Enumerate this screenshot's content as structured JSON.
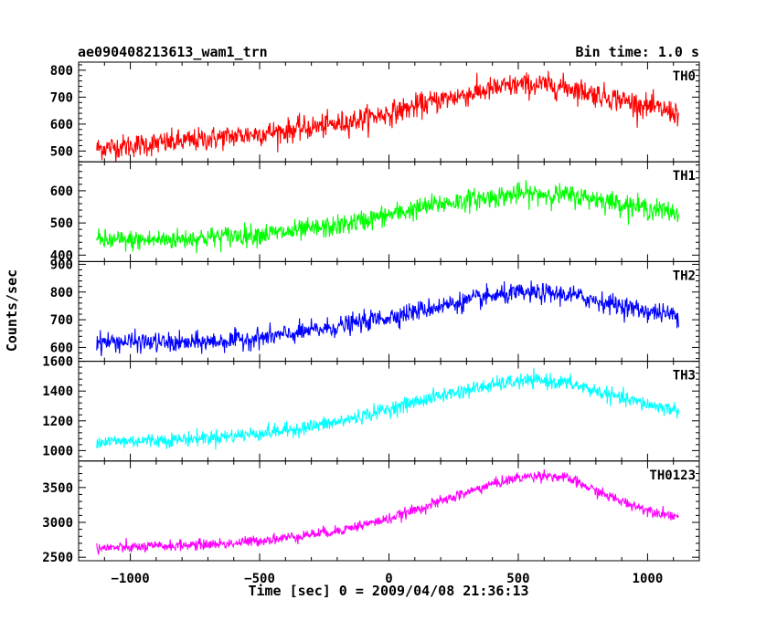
{
  "chart_data": {
    "type": "line",
    "title": "ae090408213613_wam1_trn",
    "bin_time": "Bin time: 1.0 s",
    "xlabel": "Time [sec] 0 = 2009/04/08 21:36:13",
    "ylabel": "Counts/sec",
    "xlim": [
      -1200,
      1200
    ],
    "x_ticks": [
      -1000,
      -500,
      0,
      500,
      1000
    ],
    "x_tick_labels": [
      "−1000",
      "−500",
      "0",
      "500",
      "1000"
    ],
    "grid": false,
    "panels": [
      {
        "name": "TH0",
        "color": "#ff0000",
        "ylim": [
          460,
          830
        ],
        "y_ticks": [
          500,
          600,
          700,
          800
        ],
        "profile": {
          "x": [
            -1130,
            -1000,
            -800,
            -600,
            -400,
            -200,
            0,
            200,
            400,
            500,
            600,
            700,
            800,
            900,
            1000,
            1120
          ],
          "y": [
            510,
            520,
            535,
            555,
            575,
            600,
            640,
            690,
            730,
            745,
            745,
            735,
            710,
            690,
            665,
            640
          ]
        },
        "noise": 40
      },
      {
        "name": "TH1",
        "color": "#00ff00",
        "ylim": [
          380,
          690
        ],
        "y_ticks": [
          400,
          500,
          600
        ],
        "profile": {
          "x": [
            -1130,
            -1000,
            -800,
            -600,
            -400,
            -200,
            0,
            200,
            400,
            500,
            600,
            700,
            800,
            900,
            1000,
            1120
          ],
          "y": [
            445,
            445,
            450,
            460,
            470,
            490,
            525,
            560,
            580,
            590,
            590,
            585,
            575,
            560,
            545,
            530
          ]
        },
        "noise": 30
      },
      {
        "name": "TH2",
        "color": "#0000ff",
        "ylim": [
          550,
          910
        ],
        "y_ticks": [
          600,
          700,
          800,
          900
        ],
        "profile": {
          "x": [
            -1130,
            -1000,
            -800,
            -600,
            -400,
            -200,
            0,
            200,
            400,
            500,
            600,
            700,
            800,
            900,
            1000,
            1120
          ],
          "y": [
            620,
            620,
            615,
            625,
            645,
            675,
            710,
            750,
            785,
            795,
            795,
            790,
            770,
            750,
            730,
            715
          ]
        },
        "noise": 32
      },
      {
        "name": "TH3",
        "color": "#00ffff",
        "ylim": [
          930,
          1600
        ],
        "y_ticks": [
          1000,
          1200,
          1400,
          1600
        ],
        "profile": {
          "x": [
            -1130,
            -1000,
            -800,
            -600,
            -400,
            -200,
            0,
            200,
            400,
            500,
            600,
            700,
            800,
            900,
            1000,
            1120
          ],
          "y": [
            1060,
            1065,
            1075,
            1100,
            1135,
            1190,
            1280,
            1370,
            1440,
            1465,
            1470,
            1450,
            1400,
            1350,
            1310,
            1270
          ]
        },
        "noise": 45
      },
      {
        "name": "TH0123",
        "color": "#ff00ff",
        "ylim": [
          2450,
          3880
        ],
        "y_ticks": [
          2500,
          3000,
          3500
        ],
        "profile": {
          "x": [
            -1130,
            -1000,
            -800,
            -600,
            -400,
            -200,
            0,
            200,
            400,
            500,
            600,
            700,
            800,
            900,
            1000,
            1120
          ],
          "y": [
            2630,
            2640,
            2670,
            2700,
            2780,
            2880,
            3050,
            3300,
            3550,
            3640,
            3680,
            3620,
            3450,
            3300,
            3180,
            3080
          ]
        },
        "noise": 70
      }
    ]
  }
}
